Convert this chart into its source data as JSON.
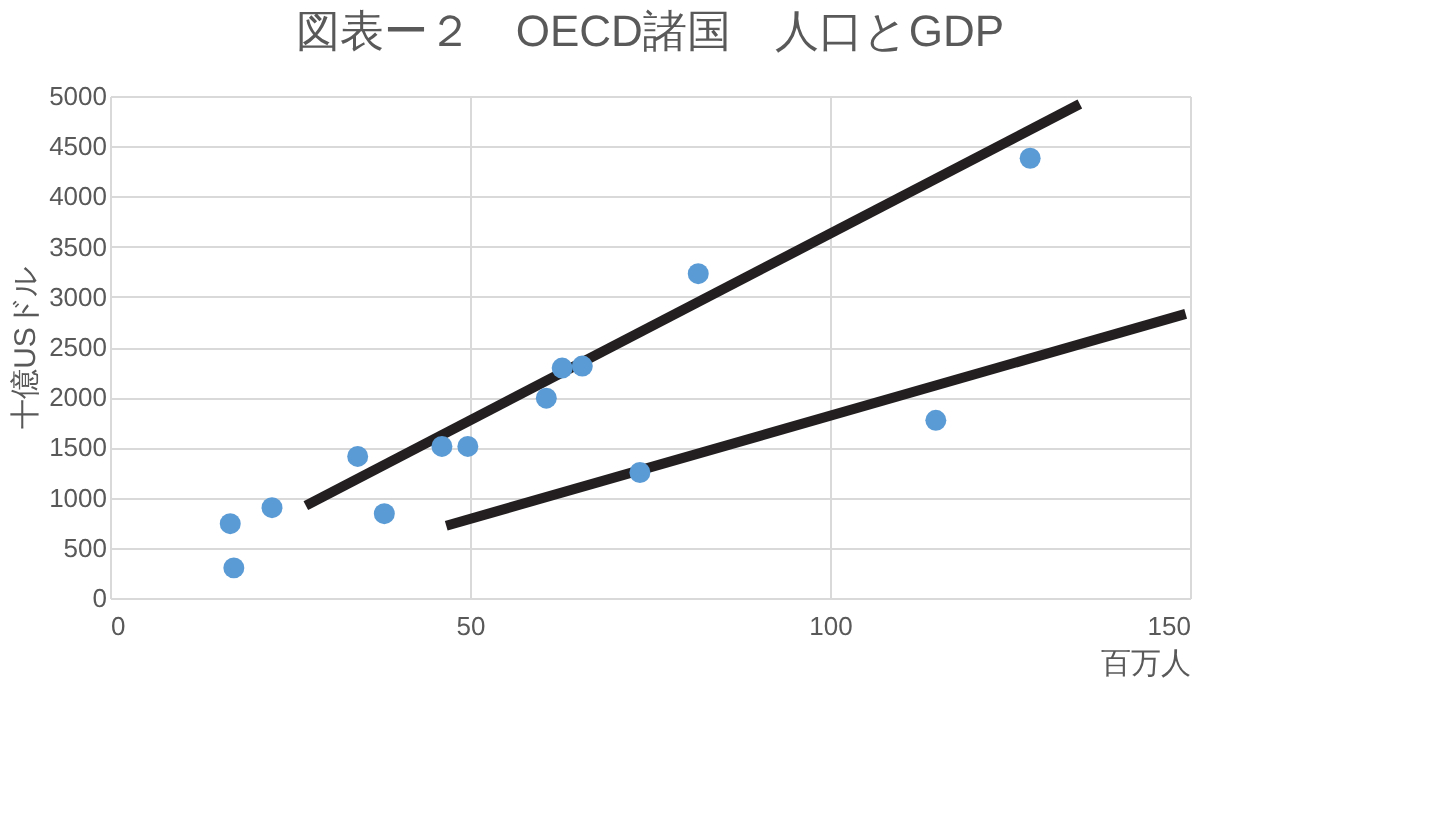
{
  "chart_data": {
    "type": "scatter",
    "title": "図表ー２　OECD諸国　人口とGDP",
    "xlabel": "百万人",
    "ylabel": "十億USドル",
    "xlim": [
      0,
      150
    ],
    "xticks": [
      0,
      50,
      100,
      150
    ],
    "ylim": [
      0,
      5000
    ],
    "yticks": [
      0,
      500,
      1000,
      1500,
      2000,
      2500,
      3000,
      3500,
      4000,
      4500,
      5000
    ],
    "grid": true,
    "series": [
      {
        "color": "#5b9bd5",
        "marker": "circle",
        "x": [
          16.7,
          17.2,
          22.5,
          34.4,
          38.1,
          46.1,
          49.7,
          60.6,
          62.8,
          65.6,
          73.6,
          81.7,
          114.7,
          127.8
        ],
        "values": [
          740,
          300,
          900,
          1410,
          840,
          1510,
          1510,
          1990,
          2290,
          2310,
          1250,
          3230,
          1770,
          4380
        ]
      },
      {
        "type": "line",
        "color": "#231f20",
        "x": [
          27.2,
          134.7
        ],
        "values": [
          920,
          4920
        ]
      },
      {
        "type": "line",
        "color": "#231f20",
        "x": [
          46.7,
          149.4
        ],
        "values": [
          720,
          2830
        ]
      }
    ]
  }
}
